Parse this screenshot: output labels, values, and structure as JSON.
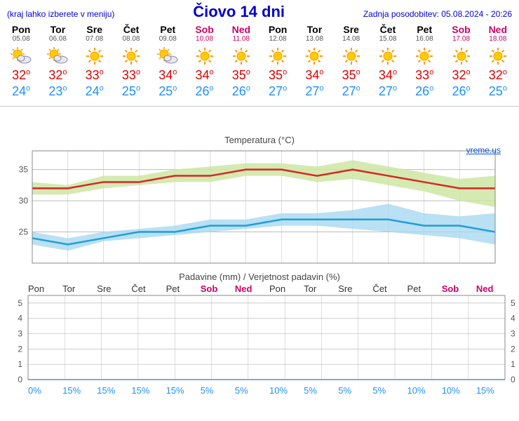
{
  "header": {
    "menu_note": "(kraj lahko izberete v meniju)",
    "title": "Čiovo 14 dni",
    "updated": "Zadnja posodobitev: 05.08.2024 - 20:26"
  },
  "days": [
    {
      "name": "Pon",
      "date": "05.08",
      "weekend": false,
      "icon": "sun-cloud",
      "hi": 32,
      "lo": 24
    },
    {
      "name": "Tor",
      "date": "06.08",
      "weekend": false,
      "icon": "sun-cloud",
      "hi": 32,
      "lo": 23
    },
    {
      "name": "Sre",
      "date": "07.08",
      "weekend": false,
      "icon": "sun",
      "hi": 33,
      "lo": 24
    },
    {
      "name": "Čet",
      "date": "08.08",
      "weekend": false,
      "icon": "sun",
      "hi": 33,
      "lo": 25
    },
    {
      "name": "Pet",
      "date": "09.08",
      "weekend": false,
      "icon": "sun-cloud",
      "hi": 34,
      "lo": 25
    },
    {
      "name": "Sob",
      "date": "10.08",
      "weekend": true,
      "icon": "sun",
      "hi": 34,
      "lo": 26
    },
    {
      "name": "Ned",
      "date": "11.08",
      "weekend": true,
      "icon": "sun",
      "hi": 35,
      "lo": 26
    },
    {
      "name": "Pon",
      "date": "12.08",
      "weekend": false,
      "icon": "sun",
      "hi": 35,
      "lo": 27
    },
    {
      "name": "Tor",
      "date": "13.08",
      "weekend": false,
      "icon": "sun",
      "hi": 34,
      "lo": 27
    },
    {
      "name": "Sre",
      "date": "14.08",
      "weekend": false,
      "icon": "sun",
      "hi": 35,
      "lo": 27
    },
    {
      "name": "Čet",
      "date": "15.08",
      "weekend": false,
      "icon": "sun",
      "hi": 34,
      "lo": 27
    },
    {
      "name": "Pet",
      "date": "16.08",
      "weekend": false,
      "icon": "sun",
      "hi": 33,
      "lo": 26
    },
    {
      "name": "Sob",
      "date": "17.08",
      "weekend": true,
      "icon": "sun",
      "hi": 32,
      "lo": 26
    },
    {
      "name": "Ned",
      "date": "18.08",
      "weekend": true,
      "icon": "sun",
      "hi": 32,
      "lo": 25
    }
  ],
  "temp_chart": {
    "title": "Temperatura (°C)",
    "attribution": "vreme.us",
    "ymin": 20,
    "ymax": 38,
    "yticks": [
      25,
      30,
      35
    ],
    "grid_color": "#bbbbbb",
    "bg_color": "#ffffff",
    "hi_band_color": "#cde6a2",
    "hi_line_color": "#d62728",
    "lo_band_color": "#a8d8f0",
    "lo_line_color": "#1f9ed8",
    "hi_line": [
      32,
      32,
      33,
      33,
      34,
      34,
      35,
      35,
      34,
      35,
      34,
      33,
      32,
      32
    ],
    "hi_band_top": [
      33,
      32.5,
      34,
      34,
      35,
      35.5,
      36,
      36,
      35.5,
      36.5,
      35.5,
      34.5,
      33.5,
      34
    ],
    "hi_band_bot": [
      31,
      31,
      32,
      32.5,
      33,
      33,
      34,
      34,
      33,
      33.5,
      32.5,
      31.5,
      30,
      29
    ],
    "lo_line": [
      24,
      23,
      24,
      25,
      25,
      26,
      26,
      27,
      27,
      27,
      27,
      26,
      26,
      25
    ],
    "lo_band_top": [
      25,
      24,
      25,
      25.5,
      26,
      27,
      27,
      28,
      28,
      28.5,
      29.5,
      28,
      27.5,
      28
    ],
    "lo_band_bot": [
      23,
      22,
      23.5,
      24,
      24.5,
      25,
      25.5,
      26,
      26,
      25.5,
      25,
      24.5,
      24,
      23
    ]
  },
  "precip_chart": {
    "title": "Padavine (mm) / Verjetnost padavin (%)",
    "ymin": 0,
    "ymax": 5.5,
    "yticks": [
      0,
      1,
      2,
      3,
      4,
      5
    ],
    "grid_color": "#bbbbbb",
    "mm_values": [
      0,
      0,
      0,
      0,
      0,
      0,
      0,
      0,
      0,
      0,
      0,
      0,
      0,
      0
    ],
    "percents": [
      "0%",
      "15%",
      "15%",
      "15%",
      "15%",
      "5%",
      "5%",
      "10%",
      "5%",
      "5%",
      "5%",
      "10%",
      "10%",
      "15%"
    ]
  }
}
